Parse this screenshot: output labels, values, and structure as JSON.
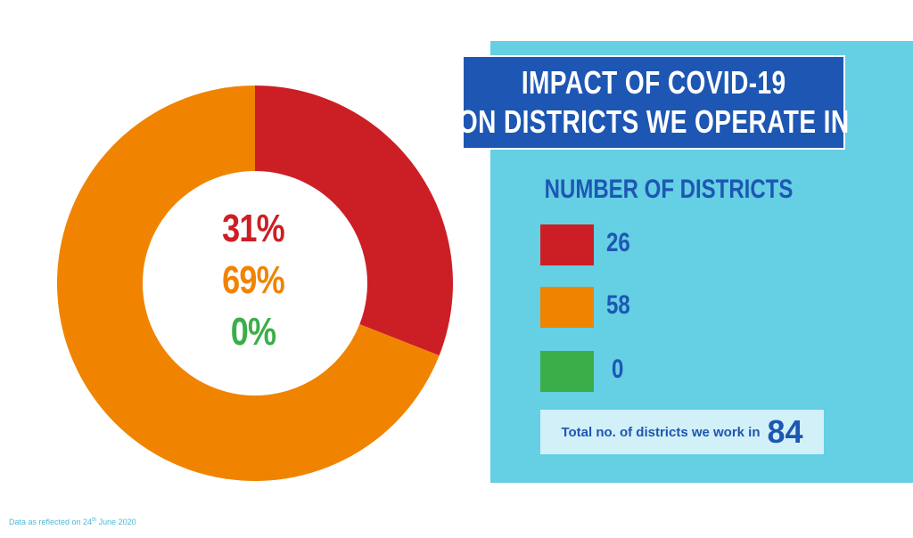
{
  "chart_data": {
    "type": "pie",
    "title": "IMPACT OF COVID-19 ON DISTRICTS WE OPERATE IN",
    "slices": [
      {
        "label": "26",
        "count": 26,
        "percent": 31,
        "percent_label": "31%",
        "color": "#cc1f25"
      },
      {
        "label": "58",
        "count": 58,
        "percent": 69,
        "percent_label": "69%",
        "color": "#f08400"
      },
      {
        "label": "0",
        "count": 0,
        "percent": 0,
        "percent_label": "0%",
        "color": "#3cae49"
      }
    ],
    "legend_title": "NUMBER OF DISTRICTS",
    "legend_placement": "right"
  },
  "header": {
    "title_line1": "IMPACT OF COVID-19",
    "title_line2": "ON DISTRICTS WE OPERATE IN"
  },
  "legend": {
    "title": "NUMBER OF DISTRICTS",
    "items": [
      {
        "value": "26",
        "color": "#cc1f25"
      },
      {
        "value": "58",
        "color": "#f08400"
      },
      {
        "value": "0",
        "color": "#3cae49"
      }
    ]
  },
  "total": {
    "label": "Total no. of districts we work in",
    "value": "84"
  },
  "footnote": {
    "prefix": "Data as reflected on 24",
    "sup": "th",
    "suffix": " June 2020"
  },
  "colors": {
    "panel": "#65cfe4",
    "title_bg": "#1d57b3",
    "text_blue": "#1d57b3"
  }
}
